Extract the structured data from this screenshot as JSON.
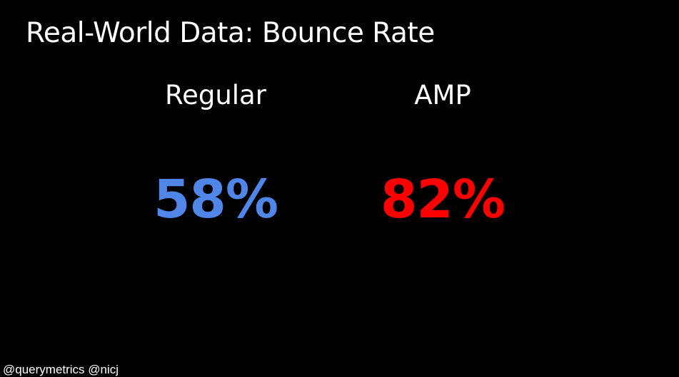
{
  "slide": {
    "title": "Real-World Data: Bounce Rate",
    "columns": [
      {
        "label": "Regular",
        "value": "58%",
        "color": "#4f86e8"
      },
      {
        "label": "AMP",
        "value": "82%",
        "color": "#ff0000"
      }
    ],
    "footer": "@querymetrics @nicj"
  }
}
